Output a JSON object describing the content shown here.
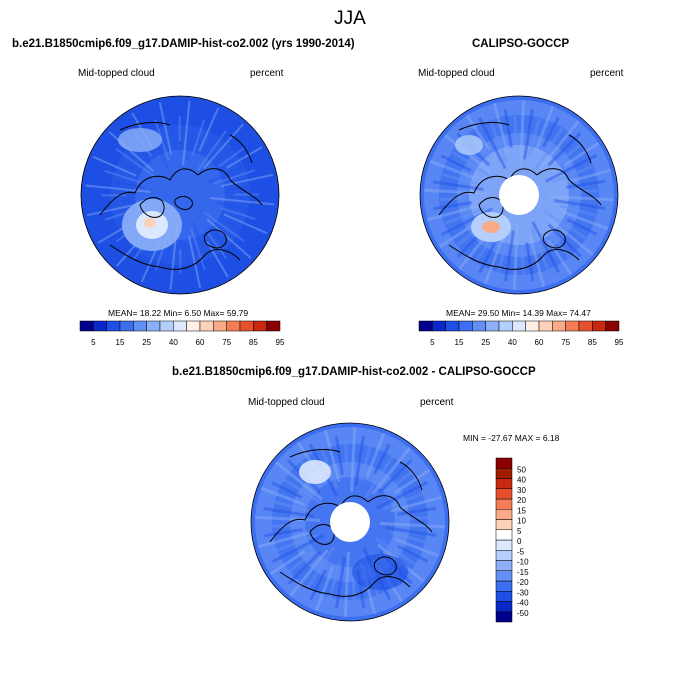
{
  "season": "JJA",
  "panels": {
    "model": {
      "title": "b.e21.B1850cmip6.f09_g17.DAMIP-hist-co2.002 (yrs 1990-2014)",
      "variable": "Mid-topped cloud",
      "units": "percent",
      "stats_text": "MEAN=  18.22  Min=   6.50  Max=  59.79",
      "has_polar_hole": false
    },
    "obs": {
      "title": "CALIPSO-GOCCP",
      "variable": "Mid-topped cloud",
      "units": "percent",
      "stats_text": "MEAN=  29.50  Min=  14.39  Max=  74.47",
      "has_polar_hole": true
    },
    "diff": {
      "title": "b.e21.B1850cmip6.f09_g17.DAMIP-hist-co2.002 - CALIPSO-GOCCP",
      "variable": "Mid-topped cloud",
      "units": "percent",
      "stats_text": "MIN = -27.67 MAX =   6.18",
      "has_polar_hole": true
    }
  },
  "colorbar_abs": {
    "colors": [
      "#00008b",
      "#0a28c8",
      "#1e50e6",
      "#3c6ef0",
      "#6490f5",
      "#8cb0f8",
      "#b4cffb",
      "#dce8fd",
      "#fff0e6",
      "#fcd2b9",
      "#f9aa87",
      "#f47d55",
      "#e6502d",
      "#c8280f",
      "#8b0000"
    ],
    "tick_labels": [
      "5",
      "15",
      "25",
      "40",
      "60",
      "75",
      "85",
      "95"
    ]
  },
  "colorbar_diff": {
    "colors": [
      "#00008b",
      "#0a28c8",
      "#1e50e6",
      "#3c6ef0",
      "#6490f5",
      "#8cb0f8",
      "#b4cffb",
      "#dce8fd",
      "#ffffff",
      "#fcd2b9",
      "#f9aa87",
      "#f47d55",
      "#e6502d",
      "#c8280f",
      "#a01e00",
      "#8b0000"
    ],
    "tick_labels": [
      "-50",
      "-40",
      "-30",
      "-20",
      "-15",
      "-10",
      "-5",
      "0",
      "5",
      "10",
      "15",
      "20",
      "30",
      "40",
      "50"
    ]
  },
  "colors": {
    "ocean_deep": "#1f4fe0",
    "coast": "#000000"
  }
}
